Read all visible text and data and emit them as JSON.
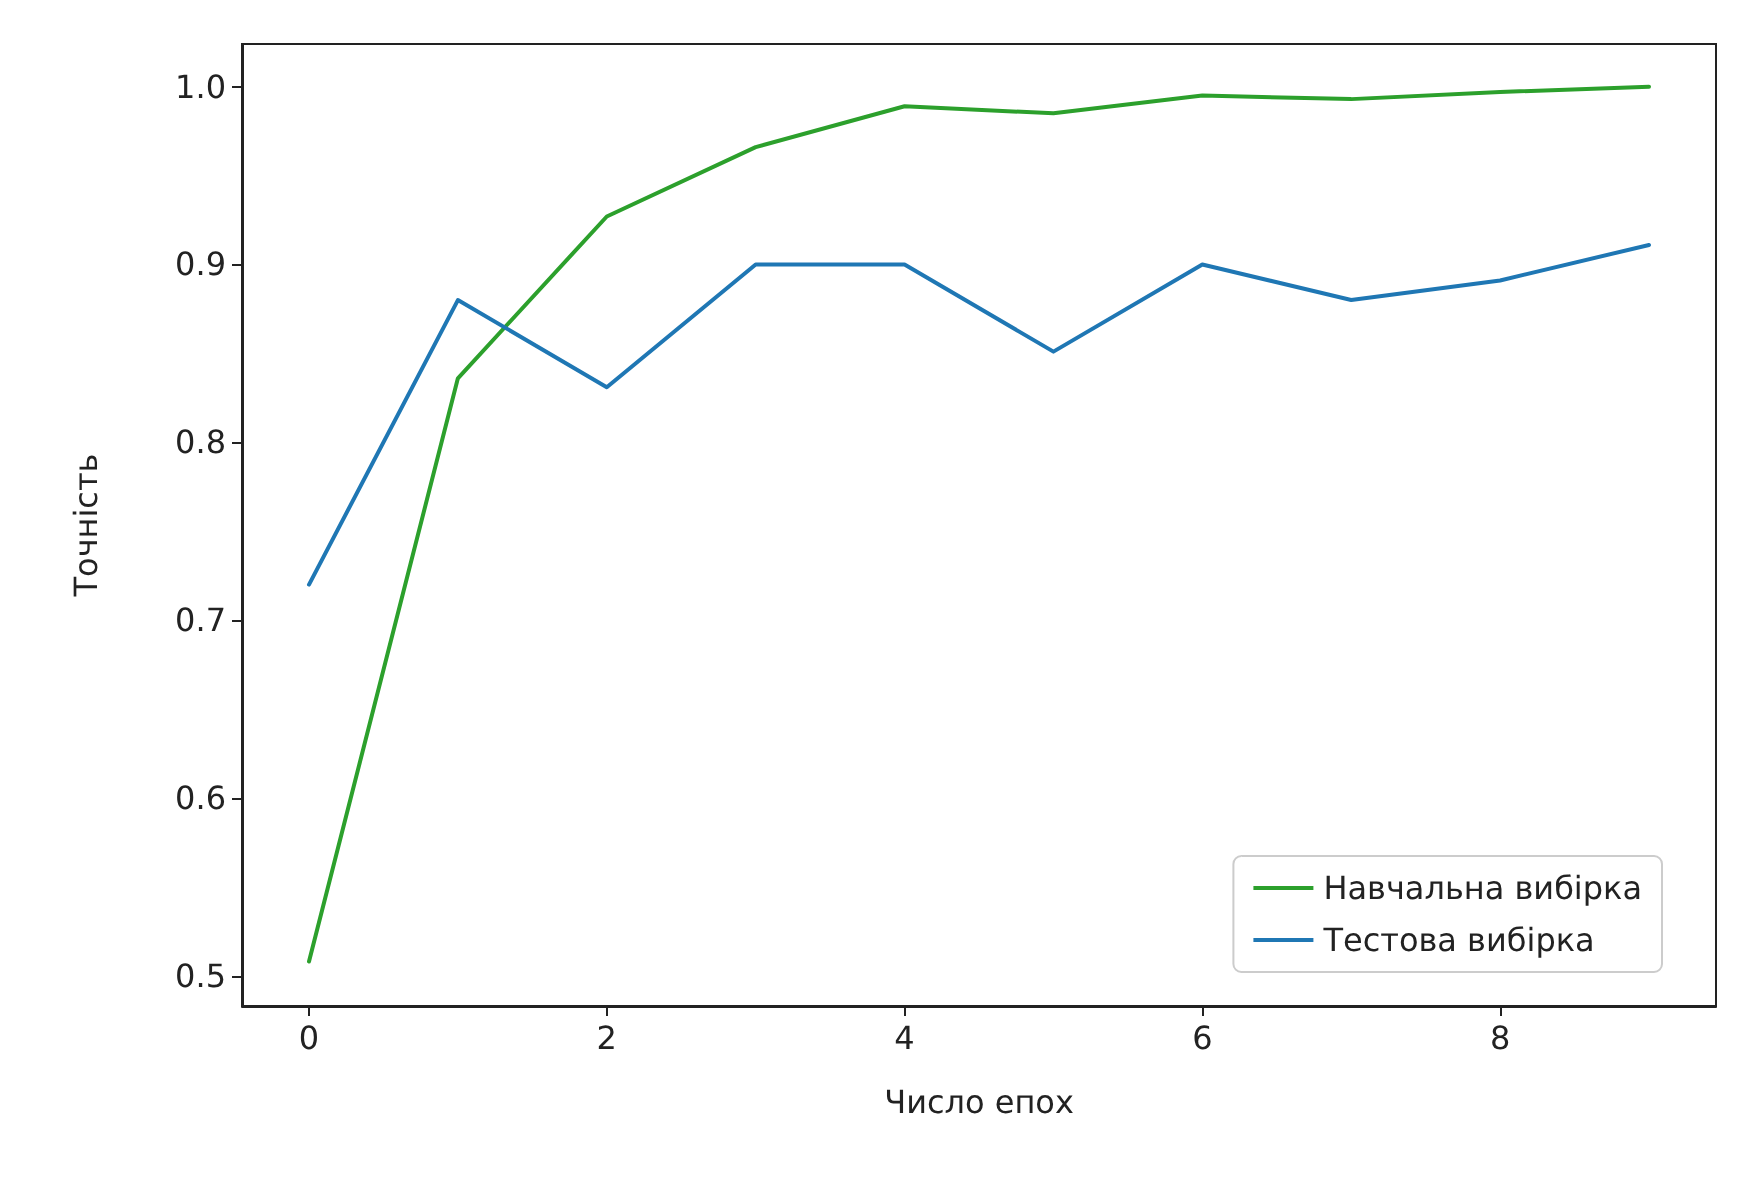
{
  "chart_data": {
    "type": "line",
    "xlabel": "Число епох",
    "ylabel": "Точність",
    "x": [
      0,
      1,
      2,
      3,
      4,
      5,
      6,
      7,
      8,
      9
    ],
    "series": [
      {
        "name": "Навчальна вибірка",
        "color": "#2ca02c",
        "values": [
          0.508,
          0.836,
          0.927,
          0.966,
          0.989,
          0.985,
          0.995,
          0.993,
          0.997,
          1.0
        ]
      },
      {
        "name": "Тестова вибірка",
        "color": "#1f77b4",
        "values": [
          0.72,
          0.88,
          0.831,
          0.9,
          0.9,
          0.851,
          0.9,
          0.88,
          0.891,
          0.911
        ]
      }
    ],
    "xlim": [
      -0.45,
      9.45
    ],
    "xticks": [
      0,
      2,
      4,
      6,
      8
    ],
    "ylim": [
      0.483,
      1.024
    ],
    "yticks": [
      0.5,
      0.6,
      0.7,
      0.8,
      0.9,
      {
        "value": 1,
        "label": "1.0"
      }
    ],
    "grid": false,
    "legend": "bottom right",
    "marker": "none",
    "line_style": "solid"
  }
}
